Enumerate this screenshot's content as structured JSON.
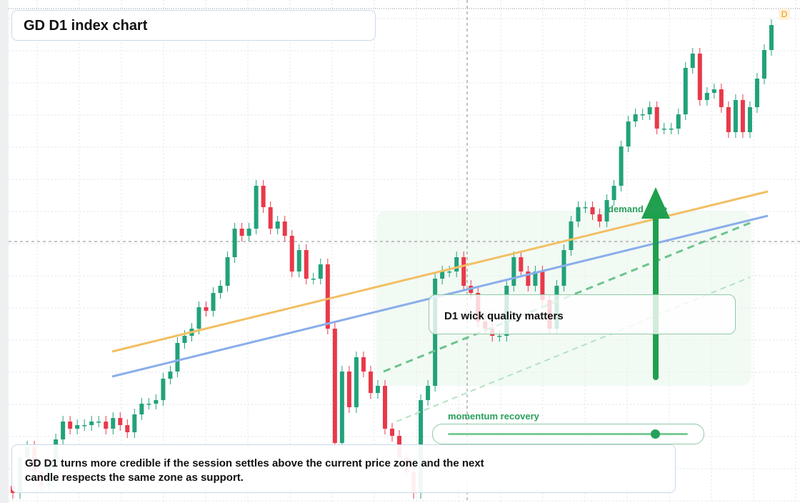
{
  "chart_data": {
    "type": "candlestick",
    "title": "GD D1 index chart",
    "open": [
      24,
      14,
      64,
      79,
      44,
      24,
      54,
      89,
      114,
      104,
      109,
      109,
      114,
      114,
      104,
      119,
      109,
      99,
      124,
      139,
      139,
      144,
      174,
      184,
      224,
      234,
      244,
      274,
      269,
      294,
      304,
      344,
      384,
      374,
      384,
      444,
      414,
      384,
      394,
      374,
      324,
      354,
      314,
      314,
      334,
      244,
      84,
      184,
      134,
      204,
      184,
      154,
      164,
      104,
      94,
      64,
      44,
      14,
      144,
      164,
      314,
      324,
      324,
      344,
      304,
      294,
      254,
      244,
      234,
      234,
      304,
      344,
      324,
      304,
      324,
      284,
      244,
      304,
      354,
      394,
      414,
      414,
      404,
      394,
      424,
      444,
      499,
      534,
      544,
      544,
      554,
      524,
      524,
      524,
      544,
      609,
      629,
      564,
      574,
      579,
      554,
      519,
      564,
      519,
      554,
      594,
      634
    ],
    "high": [
      32,
      72,
      87,
      87,
      52,
      62,
      97,
      122,
      122,
      117,
      117,
      122,
      122,
      122,
      127,
      127,
      117,
      132,
      147,
      147,
      152,
      182,
      192,
      232,
      242,
      252,
      282,
      282,
      302,
      312,
      352,
      392,
      392,
      392,
      452,
      452,
      422,
      402,
      402,
      382,
      362,
      362,
      322,
      342,
      342,
      252,
      192,
      192,
      212,
      212,
      192,
      172,
      172,
      112,
      102,
      72,
      52,
      152,
      172,
      322,
      332,
      332,
      352,
      352,
      312,
      302,
      262,
      252,
      242,
      312,
      352,
      352,
      332,
      332,
      332,
      292,
      312,
      362,
      402,
      422,
      422,
      422,
      412,
      432,
      452,
      507,
      542,
      552,
      552,
      562,
      562,
      532,
      532,
      552,
      617,
      637,
      637,
      582,
      587,
      587,
      562,
      572,
      572,
      562,
      602,
      642,
      677
    ],
    "low": [
      6,
      6,
      56,
      36,
      16,
      16,
      46,
      81,
      96,
      96,
      101,
      101,
      106,
      96,
      96,
      101,
      91,
      91,
      116,
      131,
      131,
      136,
      166,
      176,
      216,
      226,
      236,
      261,
      261,
      286,
      296,
      336,
      366,
      366,
      376,
      406,
      376,
      376,
      366,
      316,
      316,
      306,
      306,
      306,
      236,
      76,
      76,
      126,
      126,
      176,
      146,
      146,
      96,
      86,
      56,
      36,
      6,
      6,
      136,
      156,
      306,
      316,
      316,
      296,
      286,
      246,
      236,
      226,
      226,
      226,
      296,
      316,
      296,
      296,
      276,
      236,
      236,
      296,
      346,
      386,
      406,
      396,
      386,
      386,
      416,
      436,
      491,
      526,
      536,
      536,
      516,
      516,
      516,
      516,
      536,
      601,
      556,
      556,
      566,
      546,
      511,
      511,
      511,
      511,
      546,
      586,
      626
    ],
    "close": [
      14,
      64,
      79,
      44,
      24,
      54,
      89,
      114,
      104,
      109,
      109,
      114,
      114,
      104,
      119,
      109,
      99,
      124,
      139,
      139,
      144,
      174,
      184,
      224,
      234,
      244,
      274,
      269,
      294,
      304,
      344,
      384,
      374,
      384,
      444,
      414,
      384,
      394,
      374,
      324,
      354,
      314,
      314,
      334,
      244,
      84,
      184,
      134,
      204,
      184,
      154,
      164,
      104,
      94,
      64,
      44,
      14,
      144,
      164,
      314,
      324,
      324,
      344,
      304,
      294,
      254,
      244,
      234,
      234,
      304,
      344,
      324,
      304,
      324,
      284,
      244,
      304,
      354,
      394,
      414,
      414,
      404,
      394,
      424,
      444,
      499,
      534,
      544,
      544,
      554,
      524,
      524,
      524,
      544,
      609,
      629,
      564,
      574,
      579,
      554,
      519,
      564,
      519,
      554,
      594,
      634,
      669
    ],
    "ylim": [
      0,
      704
    ],
    "up_color": "#22a27a",
    "down_color": "#e8394a",
    "grid": true,
    "annotations": {
      "zone": "demand zone",
      "callout": "D1 wick quality matters",
      "slider": "momentum recovery",
      "note": "GD D1 turns more credible if the session settles above the current price zone and the next candle respects the same zone as support.",
      "badge": "D"
    }
  }
}
